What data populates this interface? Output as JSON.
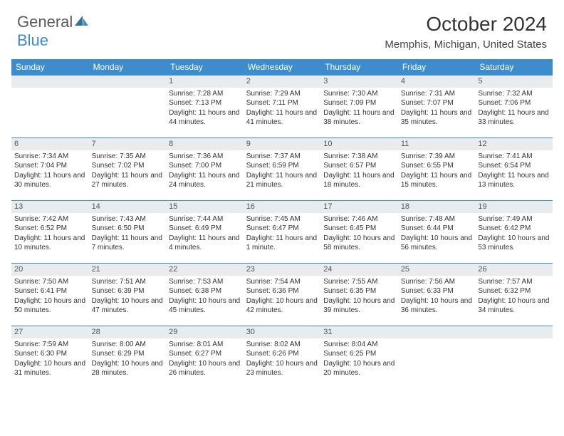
{
  "logo": {
    "text1": "General",
    "text2": "Blue"
  },
  "title": "October 2024",
  "location": "Memphis, Michigan, United States",
  "colors": {
    "header_bg": "#3d8ccc",
    "header_text": "#ffffff",
    "daynum_bg": "#e8ecef",
    "border": "#3d8ccc",
    "text": "#333333"
  },
  "day_labels": [
    "Sunday",
    "Monday",
    "Tuesday",
    "Wednesday",
    "Thursday",
    "Friday",
    "Saturday"
  ],
  "weeks": [
    [
      null,
      null,
      {
        "n": "1",
        "sr": "7:28 AM",
        "ss": "7:13 PM",
        "dl": "11 hours and 44 minutes."
      },
      {
        "n": "2",
        "sr": "7:29 AM",
        "ss": "7:11 PM",
        "dl": "11 hours and 41 minutes."
      },
      {
        "n": "3",
        "sr": "7:30 AM",
        "ss": "7:09 PM",
        "dl": "11 hours and 38 minutes."
      },
      {
        "n": "4",
        "sr": "7:31 AM",
        "ss": "7:07 PM",
        "dl": "11 hours and 35 minutes."
      },
      {
        "n": "5",
        "sr": "7:32 AM",
        "ss": "7:06 PM",
        "dl": "11 hours and 33 minutes."
      }
    ],
    [
      {
        "n": "6",
        "sr": "7:34 AM",
        "ss": "7:04 PM",
        "dl": "11 hours and 30 minutes."
      },
      {
        "n": "7",
        "sr": "7:35 AM",
        "ss": "7:02 PM",
        "dl": "11 hours and 27 minutes."
      },
      {
        "n": "8",
        "sr": "7:36 AM",
        "ss": "7:00 PM",
        "dl": "11 hours and 24 minutes."
      },
      {
        "n": "9",
        "sr": "7:37 AM",
        "ss": "6:59 PM",
        "dl": "11 hours and 21 minutes."
      },
      {
        "n": "10",
        "sr": "7:38 AM",
        "ss": "6:57 PM",
        "dl": "11 hours and 18 minutes."
      },
      {
        "n": "11",
        "sr": "7:39 AM",
        "ss": "6:55 PM",
        "dl": "11 hours and 15 minutes."
      },
      {
        "n": "12",
        "sr": "7:41 AM",
        "ss": "6:54 PM",
        "dl": "11 hours and 13 minutes."
      }
    ],
    [
      {
        "n": "13",
        "sr": "7:42 AM",
        "ss": "6:52 PM",
        "dl": "11 hours and 10 minutes."
      },
      {
        "n": "14",
        "sr": "7:43 AM",
        "ss": "6:50 PM",
        "dl": "11 hours and 7 minutes."
      },
      {
        "n": "15",
        "sr": "7:44 AM",
        "ss": "6:49 PM",
        "dl": "11 hours and 4 minutes."
      },
      {
        "n": "16",
        "sr": "7:45 AM",
        "ss": "6:47 PM",
        "dl": "11 hours and 1 minute."
      },
      {
        "n": "17",
        "sr": "7:46 AM",
        "ss": "6:45 PM",
        "dl": "10 hours and 58 minutes."
      },
      {
        "n": "18",
        "sr": "7:48 AM",
        "ss": "6:44 PM",
        "dl": "10 hours and 56 minutes."
      },
      {
        "n": "19",
        "sr": "7:49 AM",
        "ss": "6:42 PM",
        "dl": "10 hours and 53 minutes."
      }
    ],
    [
      {
        "n": "20",
        "sr": "7:50 AM",
        "ss": "6:41 PM",
        "dl": "10 hours and 50 minutes."
      },
      {
        "n": "21",
        "sr": "7:51 AM",
        "ss": "6:39 PM",
        "dl": "10 hours and 47 minutes."
      },
      {
        "n": "22",
        "sr": "7:53 AM",
        "ss": "6:38 PM",
        "dl": "10 hours and 45 minutes."
      },
      {
        "n": "23",
        "sr": "7:54 AM",
        "ss": "6:36 PM",
        "dl": "10 hours and 42 minutes."
      },
      {
        "n": "24",
        "sr": "7:55 AM",
        "ss": "6:35 PM",
        "dl": "10 hours and 39 minutes."
      },
      {
        "n": "25",
        "sr": "7:56 AM",
        "ss": "6:33 PM",
        "dl": "10 hours and 36 minutes."
      },
      {
        "n": "26",
        "sr": "7:57 AM",
        "ss": "6:32 PM",
        "dl": "10 hours and 34 minutes."
      }
    ],
    [
      {
        "n": "27",
        "sr": "7:59 AM",
        "ss": "6:30 PM",
        "dl": "10 hours and 31 minutes."
      },
      {
        "n": "28",
        "sr": "8:00 AM",
        "ss": "6:29 PM",
        "dl": "10 hours and 28 minutes."
      },
      {
        "n": "29",
        "sr": "8:01 AM",
        "ss": "6:27 PM",
        "dl": "10 hours and 26 minutes."
      },
      {
        "n": "30",
        "sr": "8:02 AM",
        "ss": "6:26 PM",
        "dl": "10 hours and 23 minutes."
      },
      {
        "n": "31",
        "sr": "8:04 AM",
        "ss": "6:25 PM",
        "dl": "10 hours and 20 minutes."
      },
      null,
      null
    ]
  ]
}
